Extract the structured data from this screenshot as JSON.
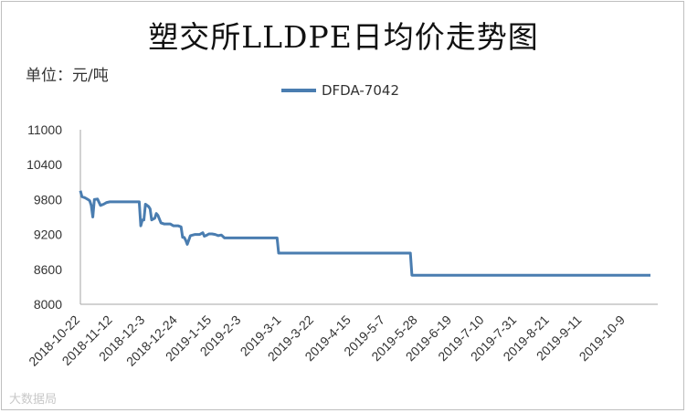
{
  "chart_data": {
    "type": "line",
    "title": "塑交所LLDPE日均价走势图",
    "unit_label": "单位：元/吨",
    "ylim": [
      8000,
      11000
    ],
    "yticks": [
      "11000",
      "10400",
      "9800",
      "9200",
      "8600",
      "8000"
    ],
    "grid": false,
    "legend_position": "top-center",
    "x_tick_labels": [
      "2018-10-22",
      "2018-11-12",
      "2018-12-3",
      "2018-12-24",
      "2019-1-15",
      "2019-2-3",
      "2019-3-1",
      "2019-3-22",
      "2019-4-15",
      "2019-5-7",
      "2019-5-28",
      "2019-6-19",
      "2019-7-10",
      "2019-7-31",
      "2019-8-21",
      "2019-9-11",
      "2019-10-9"
    ],
    "series": [
      {
        "name": "DFDA-7042",
        "color": "#4a7db0",
        "points": [
          [
            "2018-10-22",
            9950
          ],
          [
            "2018-10-23",
            9850
          ],
          [
            "2018-10-25",
            9830
          ],
          [
            "2018-10-27",
            9800
          ],
          [
            "2018-10-28",
            9780
          ],
          [
            "2018-10-29",
            9700
          ],
          [
            "2018-10-30",
            9500
          ],
          [
            "2018-10-31",
            9800
          ],
          [
            "2018-11-2",
            9810
          ],
          [
            "2018-11-4",
            9700
          ],
          [
            "2018-11-6",
            9720
          ],
          [
            "2018-11-8",
            9750
          ],
          [
            "2018-11-10",
            9760
          ],
          [
            "2018-11-12",
            9760
          ],
          [
            "2018-11-20",
            9760
          ],
          [
            "2018-11-29",
            9760
          ],
          [
            "2018-11-30",
            9350
          ],
          [
            "2018-12-1",
            9450
          ],
          [
            "2018-12-2",
            9450
          ],
          [
            "2018-12-3",
            9720
          ],
          [
            "2018-12-5",
            9680
          ],
          [
            "2018-12-6",
            9640
          ],
          [
            "2018-12-7",
            9450
          ],
          [
            "2018-12-9",
            9480
          ],
          [
            "2018-12-10",
            9560
          ],
          [
            "2018-12-11",
            9530
          ],
          [
            "2018-12-13",
            9400
          ],
          [
            "2018-12-15",
            9380
          ],
          [
            "2018-12-17",
            9380
          ],
          [
            "2018-12-19",
            9380
          ],
          [
            "2018-12-21",
            9350
          ],
          [
            "2018-12-24",
            9350
          ],
          [
            "2018-12-26",
            9330
          ],
          [
            "2018-12-27",
            9150
          ],
          [
            "2018-12-28",
            9150
          ],
          [
            "2018-12-29",
            9100
          ],
          [
            "2018-12-30",
            9030
          ],
          [
            "2019-1-1",
            9180
          ],
          [
            "2019-1-4",
            9200
          ],
          [
            "2019-1-7",
            9200
          ],
          [
            "2019-1-9",
            9230
          ],
          [
            "2019-1-10",
            9170
          ],
          [
            "2019-1-11",
            9180
          ],
          [
            "2019-1-13",
            9210
          ],
          [
            "2019-1-15",
            9210
          ],
          [
            "2019-1-17",
            9200
          ],
          [
            "2019-1-19",
            9180
          ],
          [
            "2019-1-21",
            9190
          ],
          [
            "2019-1-23",
            9140
          ],
          [
            "2019-2-3",
            9140
          ],
          [
            "2019-2-14",
            9140
          ],
          [
            "2019-2-26",
            9140
          ],
          [
            "2019-2-27",
            8880
          ],
          [
            "2019-3-22",
            8880
          ],
          [
            "2019-4-15",
            8880
          ],
          [
            "2019-5-7",
            8880
          ],
          [
            "2019-5-23",
            8880
          ],
          [
            "2019-5-24",
            8500
          ],
          [
            "2019-5-28",
            8500
          ],
          [
            "2019-6-19",
            8500
          ],
          [
            "2019-7-10",
            8500
          ],
          [
            "2019-7-31",
            8500
          ],
          [
            "2019-8-21",
            8500
          ],
          [
            "2019-9-11",
            8500
          ],
          [
            "2019-10-9",
            8500
          ],
          [
            "2019-10-25",
            8500
          ]
        ]
      }
    ]
  },
  "watermark": "大数据局"
}
